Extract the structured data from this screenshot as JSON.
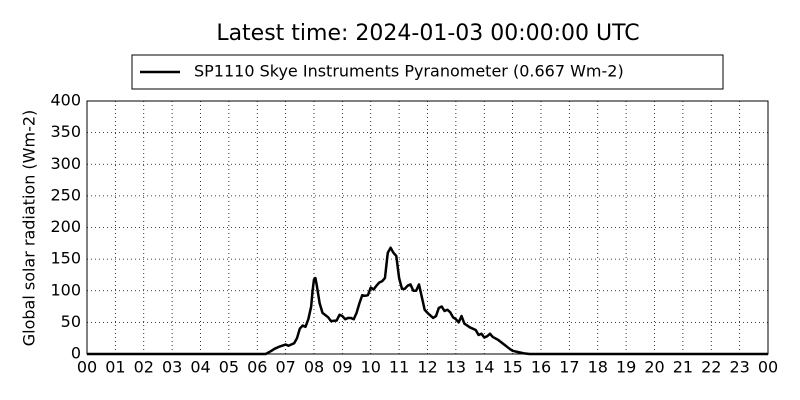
{
  "chart_data": {
    "type": "line",
    "title": "Latest time: 2024-01-03 00:00:00 UTC",
    "ylabel": "Global solar radiation (Wm-2)",
    "x": [
      0,
      6.3,
      6.5,
      6.6,
      6.8,
      7.0,
      7.1,
      7.3,
      7.4,
      7.5,
      7.6,
      7.7,
      7.8,
      7.9,
      7.95,
      8.0,
      8.05,
      8.1,
      8.2,
      8.3,
      8.5,
      8.6,
      8.8,
      8.9,
      9.0,
      9.1,
      9.2,
      9.3,
      9.4,
      9.5,
      9.6,
      9.7,
      9.8,
      9.9,
      10.0,
      10.1,
      10.2,
      10.3,
      10.4,
      10.5,
      10.55,
      10.6,
      10.7,
      10.8,
      10.9,
      11.0,
      11.1,
      11.2,
      11.3,
      11.4,
      11.5,
      11.6,
      11.7,
      11.8,
      11.9,
      12.0,
      12.2,
      12.3,
      12.4,
      12.5,
      12.6,
      12.7,
      12.8,
      12.9,
      13.0,
      13.1,
      13.2,
      13.3,
      13.4,
      13.5,
      13.7,
      13.8,
      13.9,
      14.0,
      14.1,
      14.2,
      14.3,
      14.5,
      14.7,
      14.9,
      15.0,
      15.2,
      15.4,
      15.6,
      24
    ],
    "series": [
      {
        "name": "SP1110 Skye Instruments Pyranometer (0.667 Wm-2)",
        "color": "#000000",
        "values": [
          0,
          0,
          5,
          8,
          12,
          15,
          13,
          17,
          25,
          40,
          45,
          43,
          55,
          75,
          100,
          118,
          120,
          108,
          80,
          65,
          58,
          52,
          53,
          62,
          60,
          55,
          57,
          57,
          55,
          65,
          80,
          93,
          92,
          93,
          105,
          102,
          108,
          113,
          115,
          120,
          140,
          160,
          168,
          160,
          155,
          120,
          103,
          103,
          108,
          110,
          100,
          100,
          110,
          90,
          70,
          65,
          57,
          60,
          73,
          75,
          68,
          70,
          66,
          58,
          55,
          50,
          60,
          48,
          45,
          42,
          38,
          30,
          32,
          26,
          28,
          32,
          27,
          22,
          15,
          8,
          5,
          3,
          1,
          0,
          0
        ]
      }
    ],
    "xlim": [
      0,
      24
    ],
    "xticks": [
      {
        "value": 0,
        "label": "00"
      },
      {
        "value": 1,
        "label": "01"
      },
      {
        "value": 2,
        "label": "02"
      },
      {
        "value": 3,
        "label": "03"
      },
      {
        "value": 4,
        "label": "04"
      },
      {
        "value": 5,
        "label": "05"
      },
      {
        "value": 6,
        "label": "06"
      },
      {
        "value": 7,
        "label": "07"
      },
      {
        "value": 8,
        "label": "08"
      },
      {
        "value": 9,
        "label": "09"
      },
      10,
      11,
      12,
      13,
      14,
      15,
      16,
      17,
      18,
      19,
      20,
      21,
      22,
      23,
      {
        "value": 24,
        "label": "00"
      }
    ],
    "ylim": [
      0,
      400
    ],
    "yticks": [
      0,
      50,
      100,
      150,
      200,
      250,
      300,
      350,
      400
    ],
    "grid": true
  }
}
